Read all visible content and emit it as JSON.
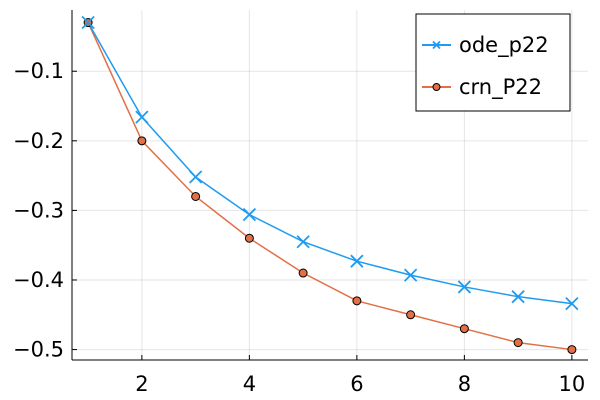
{
  "chart_data": {
    "type": "line",
    "title": "",
    "xlabel": "",
    "ylabel": "",
    "xlim": [
      0.7,
      10.3
    ],
    "ylim": [
      -0.515,
      -0.012
    ],
    "x_ticks": [
      2,
      4,
      6,
      8,
      10
    ],
    "y_ticks": [
      -0.1,
      -0.2,
      -0.3,
      -0.4,
      -0.5
    ],
    "x_tick_labels": [
      "2",
      "4",
      "6",
      "8",
      "10"
    ],
    "y_tick_labels": [
      "−0.1",
      "−0.2",
      "−0.3",
      "−0.4",
      "−0.5"
    ],
    "grid": true,
    "legend_position": "top-right",
    "x": [
      1,
      2,
      3,
      4,
      5,
      6,
      7,
      8,
      9,
      10
    ],
    "series": [
      {
        "name": "ode_p22",
        "color": "#1f9bef",
        "marker": "x",
        "values": [
          -0.03,
          -0.166,
          -0.252,
          -0.306,
          -0.345,
          -0.373,
          -0.393,
          -0.41,
          -0.424,
          -0.434
        ]
      },
      {
        "name": "crn_P22",
        "color": "#e26f46",
        "marker": "circle",
        "values": [
          -0.03,
          -0.2,
          -0.28,
          -0.34,
          -0.39,
          -0.43,
          -0.45,
          -0.47,
          -0.49,
          -0.5
        ]
      }
    ]
  }
}
